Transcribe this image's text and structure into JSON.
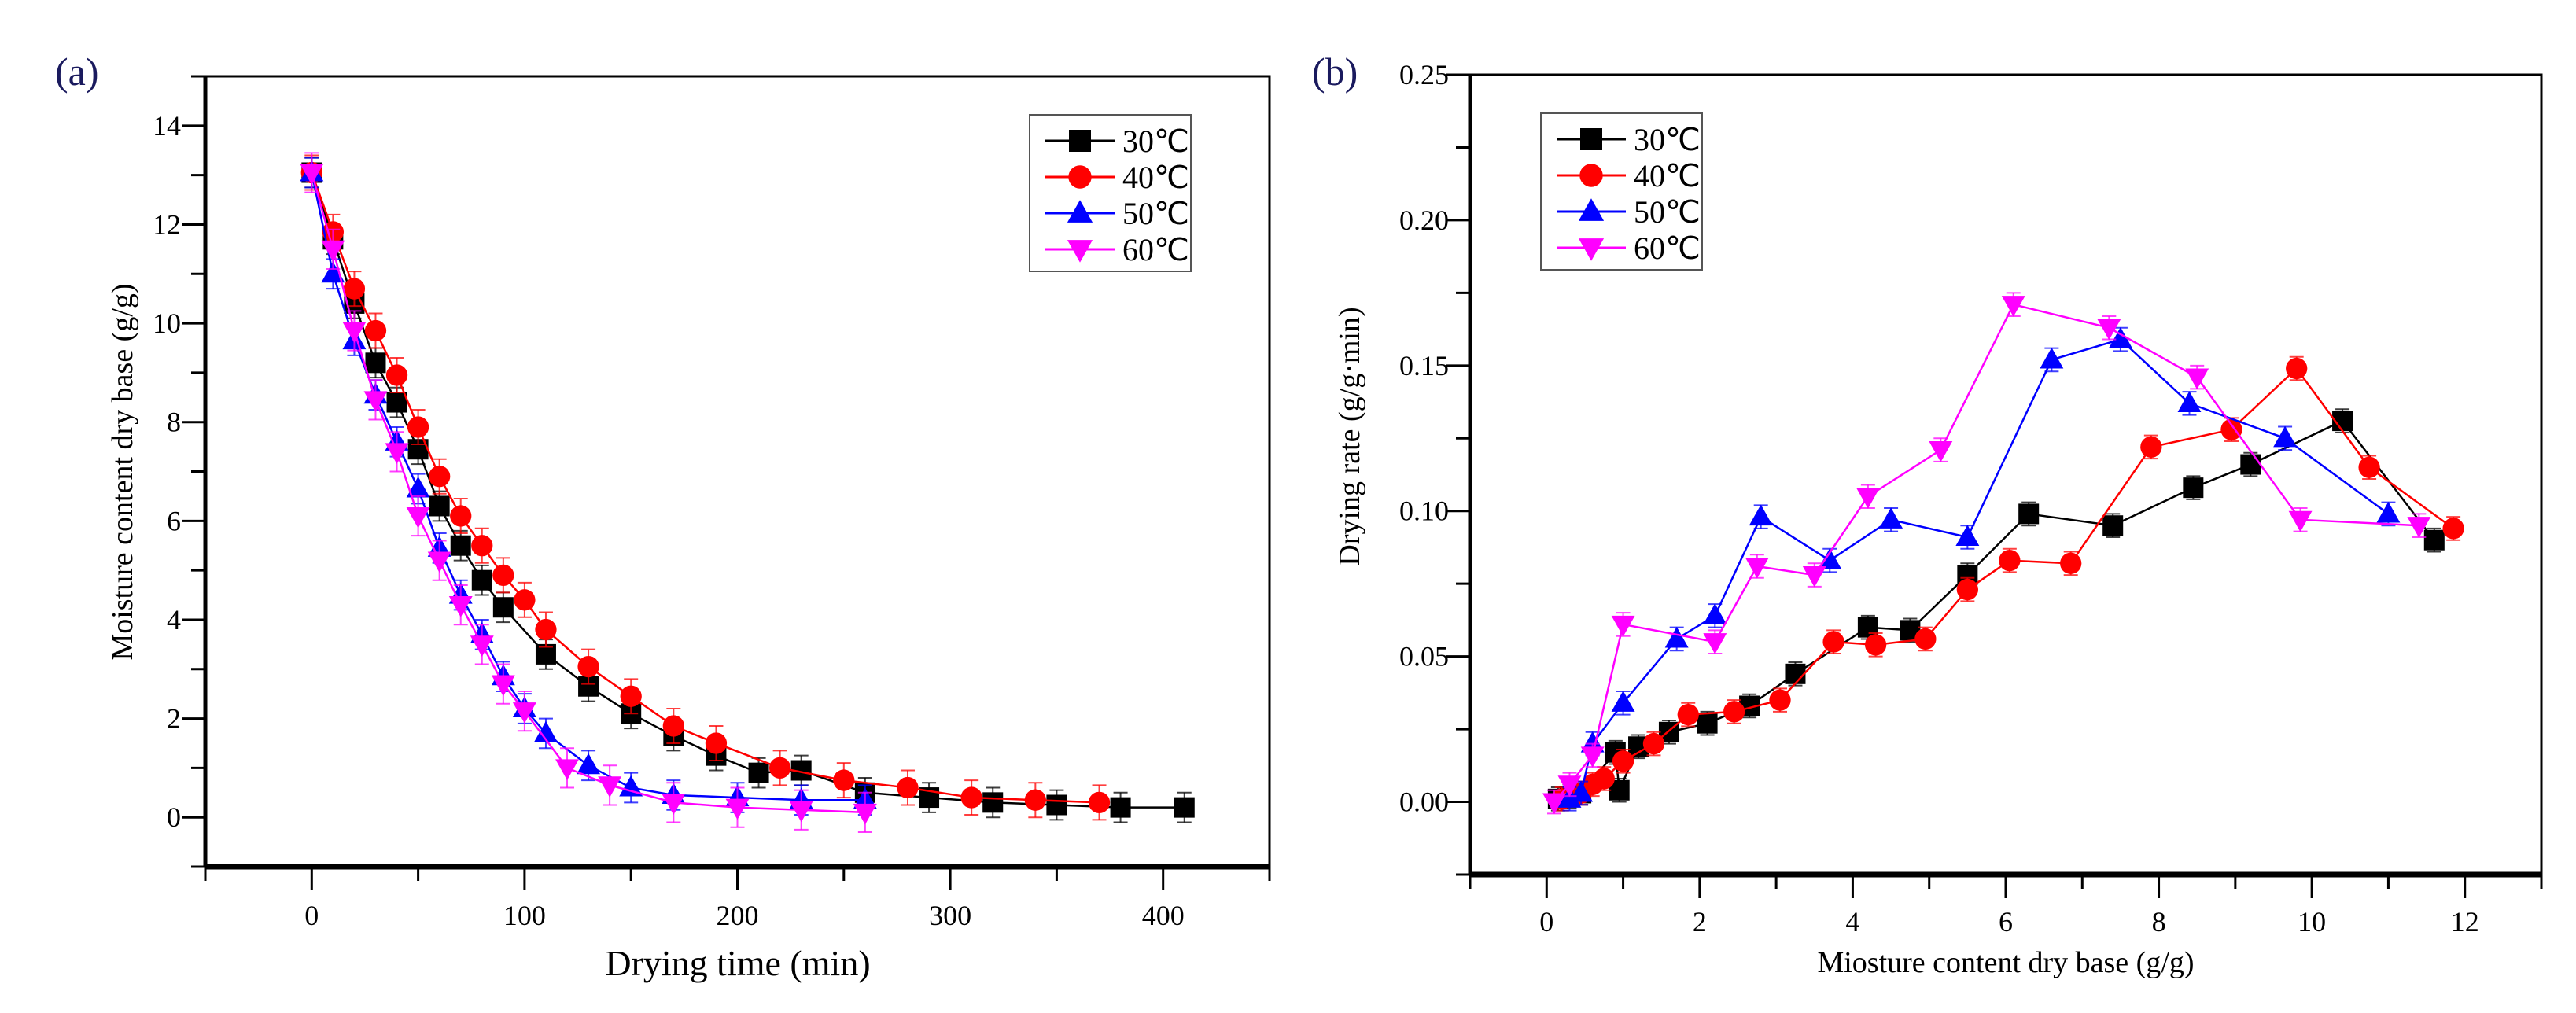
{
  "colors": {
    "30": "#000000",
    "40": "#ff0000",
    "50": "#0000ff",
    "60": "#ff00ff"
  },
  "chart_data": [
    {
      "id": "a",
      "panel_label": "(a)",
      "type": "line",
      "xlabel": "Drying time (min)",
      "ylabel": "Moisture content dry base (g/g)",
      "xlim": [
        -50,
        450
      ],
      "ylim": [
        -1,
        15
      ],
      "xticks": [
        0,
        100,
        200,
        300,
        400
      ],
      "xticks_minor_step": 50,
      "yticks": [
        0,
        2,
        4,
        6,
        8,
        10,
        12,
        14
      ],
      "yticks_minor_step": 1,
      "legend_position": "top-right",
      "series": [
        {
          "name": "30℃",
          "color": "#000000",
          "marker": "square",
          "err": 0.3,
          "x": [
            0,
            10,
            20,
            30,
            40,
            50,
            60,
            70,
            80,
            90,
            110,
            130,
            150,
            170,
            190,
            210,
            230,
            260,
            290,
            320,
            350,
            380,
            410
          ],
          "y": [
            13.05,
            11.7,
            10.4,
            9.2,
            8.4,
            7.45,
            6.3,
            5.5,
            4.8,
            4.25,
            3.3,
            2.65,
            2.1,
            1.65,
            1.25,
            0.9,
            0.95,
            0.5,
            0.4,
            0.3,
            0.25,
            0.2,
            0.2
          ]
        },
        {
          "name": "40℃",
          "color": "#ff0000",
          "marker": "circle",
          "err": 0.35,
          "x": [
            0,
            10,
            20,
            30,
            40,
            50,
            60,
            70,
            80,
            90,
            100,
            110,
            130,
            150,
            170,
            190,
            220,
            250,
            280,
            310,
            340,
            370
          ],
          "y": [
            13.05,
            11.85,
            10.7,
            9.85,
            8.95,
            7.9,
            6.9,
            6.1,
            5.5,
            4.9,
            4.4,
            3.8,
            3.05,
            2.45,
            1.85,
            1.5,
            1.0,
            0.75,
            0.6,
            0.4,
            0.35,
            0.3
          ]
        },
        {
          "name": "50℃",
          "color": "#0000ff",
          "marker": "triangle-up",
          "err": 0.3,
          "x": [
            0,
            10,
            20,
            30,
            40,
            50,
            60,
            70,
            80,
            90,
            100,
            110,
            130,
            150,
            170,
            200,
            230,
            260
          ],
          "y": [
            13.05,
            11.0,
            9.65,
            8.55,
            7.6,
            6.65,
            5.45,
            4.5,
            3.7,
            2.85,
            2.2,
            1.7,
            1.05,
            0.6,
            0.45,
            0.4,
            0.35,
            0.35
          ]
        },
        {
          "name": "60℃",
          "color": "#ff00ff",
          "marker": "triangle-down",
          "err": 0.4,
          "x": [
            0,
            10,
            20,
            30,
            40,
            50,
            60,
            70,
            80,
            90,
            100,
            120,
            140,
            170,
            200,
            230,
            260
          ],
          "y": [
            13.05,
            11.5,
            9.85,
            8.45,
            7.4,
            6.1,
            5.2,
            4.3,
            3.5,
            2.7,
            2.15,
            1.0,
            0.65,
            0.3,
            0.2,
            0.15,
            0.1
          ]
        }
      ]
    },
    {
      "id": "b",
      "panel_label": "(b)",
      "type": "line",
      "xlabel": "Miosture content dry base (g/g)",
      "ylabel": "Drying rate (g/g·min)",
      "xlim": [
        -1,
        13
      ],
      "ylim": [
        -0.025,
        0.25
      ],
      "xticks": [
        0,
        2,
        4,
        6,
        8,
        10,
        12
      ],
      "xticks_minor_step": 1,
      "yticks": [
        0.0,
        0.05,
        0.1,
        0.15,
        0.2,
        0.25
      ],
      "ytick_labels": [
        "0.00",
        "0.05",
        "0.10",
        "0.15",
        "0.20",
        "0.25"
      ],
      "yticks_minor_step": 0.025,
      "legend_position": "top-left",
      "series": [
        {
          "name": "30℃",
          "color": "#000000",
          "marker": "square",
          "err": 0.004,
          "x": [
            0.15,
            0.3,
            0.45,
            0.9,
            0.95,
            1.2,
            1.6,
            2.1,
            2.65,
            3.25,
            4.2,
            4.75,
            5.5,
            6.3,
            7.4,
            8.45,
            9.2,
            10.4,
            11.6
          ],
          "y": [
            0.001,
            0.002,
            0.003,
            0.017,
            0.004,
            0.019,
            0.024,
            0.027,
            0.033,
            0.044,
            0.06,
            0.059,
            0.078,
            0.099,
            0.095,
            0.108,
            0.116,
            0.131,
            0.09
          ]
        },
        {
          "name": "40℃",
          "color": "#ff0000",
          "marker": "circle",
          "err": 0.004,
          "x": [
            0.2,
            0.45,
            0.6,
            0.75,
            1.0,
            1.4,
            1.85,
            2.45,
            3.05,
            3.75,
            4.3,
            4.95,
            5.5,
            6.05,
            6.85,
            7.9,
            8.95,
            9.8,
            10.75,
            11.85
          ],
          "y": [
            0.001,
            0.003,
            0.006,
            0.008,
            0.014,
            0.02,
            0.03,
            0.031,
            0.035,
            0.055,
            0.054,
            0.056,
            0.073,
            0.083,
            0.082,
            0.122,
            0.128,
            0.149,
            0.115,
            0.094
          ]
        },
        {
          "name": "50℃",
          "color": "#0000ff",
          "marker": "triangle-up",
          "err": 0.004,
          "x": [
            0.3,
            0.45,
            0.6,
            1.0,
            1.7,
            2.2,
            2.8,
            3.7,
            4.5,
            5.5,
            6.6,
            7.5,
            8.4,
            9.65,
            11.0
          ],
          "y": [
            0.001,
            0.003,
            0.02,
            0.034,
            0.056,
            0.064,
            0.098,
            0.083,
            0.097,
            0.091,
            0.152,
            0.159,
            0.137,
            0.125,
            0.099
          ]
        },
        {
          "name": "60℃",
          "color": "#ff00ff",
          "marker": "triangle-down",
          "err": 0.004,
          "x": [
            0.1,
            0.3,
            0.6,
            1.0,
            2.2,
            2.75,
            3.5,
            4.2,
            5.15,
            6.1,
            7.35,
            8.5,
            9.85,
            11.4
          ],
          "y": [
            0.0,
            0.006,
            0.016,
            0.061,
            0.055,
            0.081,
            0.078,
            0.105,
            0.121,
            0.171,
            0.163,
            0.146,
            0.097,
            0.095
          ]
        }
      ]
    }
  ]
}
